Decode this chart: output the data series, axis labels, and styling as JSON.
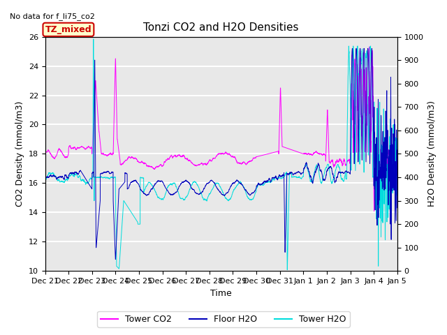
{
  "title": "Tonzi CO2 and H2O Densities",
  "no_data_text": "No data for f_li75_co2",
  "annotation_text": "TZ_mixed",
  "annotation_color": "#cc0000",
  "annotation_bg": "#ffffcc",
  "xlabel": "Time",
  "ylabel_left": "CO2 Density (mmol/m3)",
  "ylabel_right": "H2O Density (mmol/m3)",
  "ylim_left": [
    10,
    26
  ],
  "ylim_right": [
    0,
    1000
  ],
  "yticks_left": [
    10,
    12,
    14,
    16,
    18,
    20,
    22,
    24,
    26
  ],
  "yticks_right": [
    0,
    100,
    200,
    300,
    400,
    500,
    600,
    700,
    800,
    900,
    1000
  ],
  "bg_color": "#e8e8e8",
  "colors": {
    "tower_co2": "#ff00ff",
    "floor_h2o": "#0000bb",
    "tower_h2o": "#00dddd"
  },
  "legend": [
    "Tower CO2",
    "Floor H2O",
    "Tower H2O"
  ],
  "x_tick_labels": [
    "Dec 21",
    "Dec 22",
    "Dec 23",
    "Dec 24",
    "Dec 25",
    "Dec 26",
    "Dec 27",
    "Dec 28",
    "Dec 29",
    "Dec 30",
    "Dec 31",
    "Jan 1",
    "Jan 2",
    "Jan 3",
    "Jan 4",
    "Jan 5"
  ],
  "seed": 42,
  "n_points": 3000
}
